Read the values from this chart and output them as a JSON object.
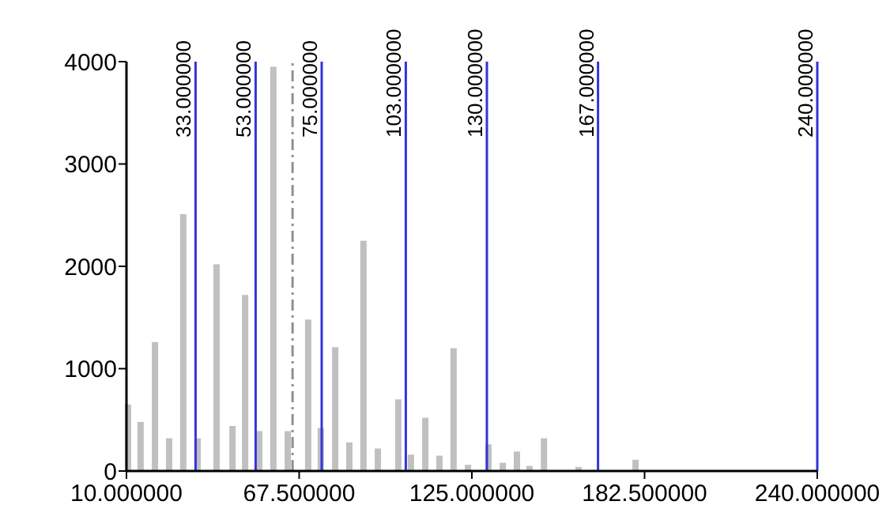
{
  "chart_data": {
    "type": "bar",
    "color": "#c0c0c0",
    "x": [
      10.5,
      14.7,
      19.5,
      24.2,
      28.9,
      33.7,
      40,
      45.3,
      49.5,
      54.2,
      58.9,
      63.7,
      70.5,
      74.7,
      79.5,
      84.2,
      88.9,
      93.7,
      100.5,
      104.7,
      109.5,
      114.2,
      118.9,
      123.7,
      130.5,
      135.3,
      140,
      144.2,
      149,
      160.5,
      179.5
    ],
    "values": [
      650,
      480,
      1260,
      320,
      2510,
      320,
      2020,
      440,
      1720,
      390,
      3950,
      390,
      1480,
      420,
      1210,
      280,
      2250,
      220,
      700,
      160,
      520,
      150,
      1200,
      60,
      260,
      80,
      190,
      50,
      320,
      40,
      110
    ],
    "xlim": [
      10,
      240
    ],
    "xticks": [
      {
        "value": 10,
        "label": "10.000000"
      },
      {
        "value": 67.5,
        "label": "67.500000"
      },
      {
        "value": 125,
        "label": "125.000000"
      },
      {
        "value": 182.5,
        "label": "182.500000"
      },
      {
        "value": 240,
        "label": "240.000000"
      }
    ],
    "ylim": [
      0,
      4000
    ],
    "yticks": [
      0,
      1000,
      2000,
      3000,
      4000
    ],
    "ref_lines": [
      {
        "axis": "x",
        "value": 33,
        "label": "33.000000",
        "color": "#3333dd"
      },
      {
        "axis": "x",
        "value": 53,
        "label": "53.000000",
        "color": "#3333dd"
      },
      {
        "axis": "x",
        "value": 75,
        "label": "75.000000",
        "color": "#3333dd"
      },
      {
        "axis": "x",
        "value": 103,
        "label": "103.000000",
        "color": "#3333dd"
      },
      {
        "axis": "x",
        "value": 130,
        "label": "130.000000",
        "color": "#3333dd"
      },
      {
        "axis": "x",
        "value": 167,
        "label": "167.000000",
        "color": "#3333dd"
      },
      {
        "axis": "x",
        "value": 240,
        "label": "240.000000",
        "color": "#3333dd"
      },
      {
        "axis": "x",
        "value": 65.3,
        "color": "#909090",
        "line_style": "dashed"
      }
    ],
    "grid": false
  }
}
